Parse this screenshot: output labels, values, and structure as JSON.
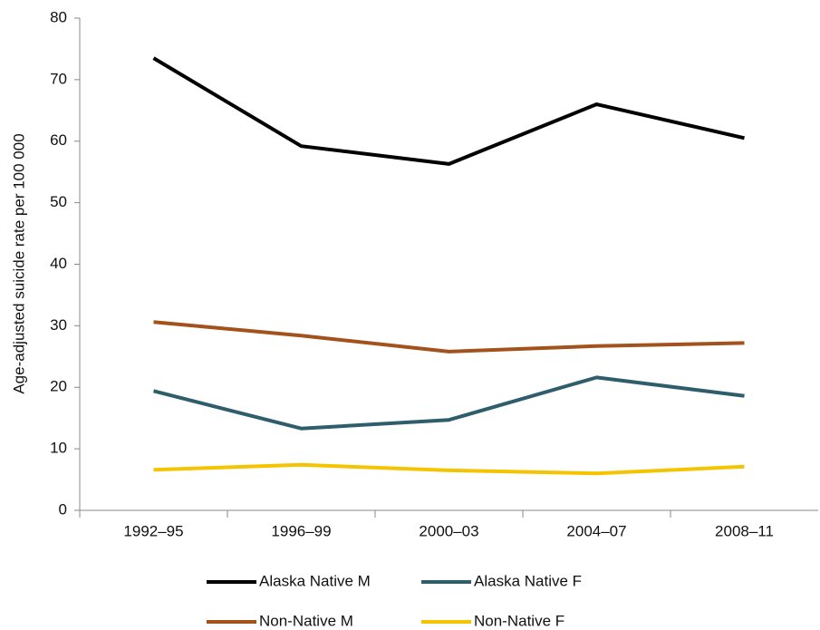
{
  "chart_data": {
    "type": "line",
    "y_label": "Age-adjusted suicide rate per 100 000",
    "categories": [
      "1992–95",
      "1996–99",
      "2000–03",
      "2004–07",
      "2008–11"
    ],
    "series": [
      {
        "name": "Alaska Native M",
        "color": "#000000",
        "values": [
          73.5,
          59.2,
          56.3,
          66.0,
          60.5
        ]
      },
      {
        "name": "Alaska Native F",
        "color": "#2e5e6c",
        "values": [
          19.4,
          13.3,
          14.7,
          21.6,
          18.6
        ]
      },
      {
        "name": "Non-Native M",
        "color": "#a3521c",
        "values": [
          30.6,
          28.4,
          25.8,
          26.7,
          27.2
        ]
      },
      {
        "name": "Non-Native F",
        "color": "#f5c400",
        "values": [
          6.6,
          7.4,
          6.5,
          6.0,
          7.1
        ]
      }
    ],
    "ylim": [
      0,
      80
    ],
    "yticks": [
      0,
      10,
      20,
      30,
      40,
      50,
      60,
      70,
      80
    ],
    "grid": false
  }
}
